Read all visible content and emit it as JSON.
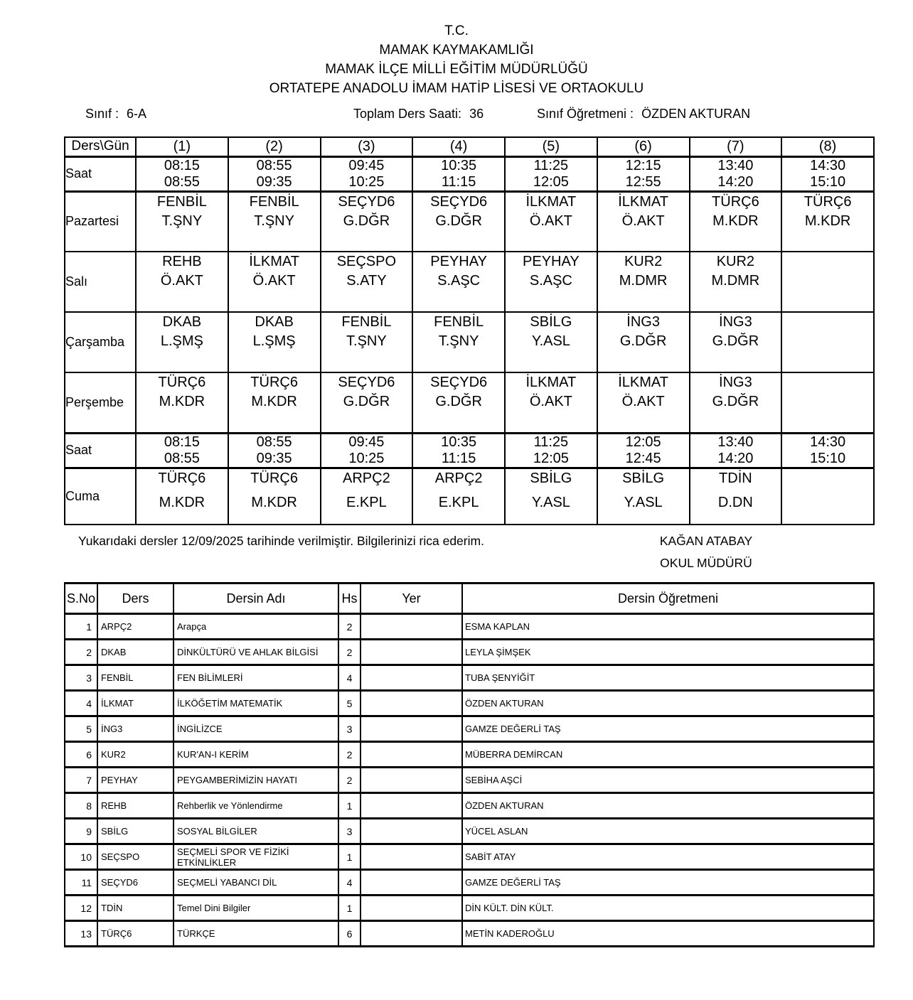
{
  "header": {
    "title_lines": [
      "T.C.",
      "MAMAK KAYMAKAMLIĞI",
      "MAMAK İLÇE MİLLİ EĞİTİM MÜDÜRLÜĞÜ",
      "ORTATEPE ANADOLU İMAM HATİP LİSESİ VE ORTAOKULU"
    ],
    "class_label": "Sınıf :",
    "class_value": "6-A",
    "total_hours_label": "Toplam Ders Saati:",
    "total_hours_value": "36",
    "teacher_label": "Sınıf Öğretmeni :",
    "teacher_value": "ÖZDEN AKTURAN"
  },
  "schedule": {
    "corner_label": "Ders\\Gün",
    "saat_label": "Saat",
    "periods": [
      "(1)",
      "(2)",
      "(3)",
      "(4)",
      "(5)",
      "(6)",
      "(7)",
      "(8)"
    ],
    "times_top": [
      {
        "start": "08:15",
        "end": "08:55"
      },
      {
        "start": "08:55",
        "end": "09:35"
      },
      {
        "start": "09:45",
        "end": "10:25"
      },
      {
        "start": "10:35",
        "end": "11:15"
      },
      {
        "start": "11:25",
        "end": "12:05"
      },
      {
        "start": "12:15",
        "end": "12:55"
      },
      {
        "start": "13:40",
        "end": "14:20"
      },
      {
        "start": "14:30",
        "end": "15:10"
      }
    ],
    "times_friday": [
      {
        "start": "08:15",
        "end": "08:55"
      },
      {
        "start": "08:55",
        "end": "09:35"
      },
      {
        "start": "09:45",
        "end": "10:25"
      },
      {
        "start": "10:35",
        "end": "11:15"
      },
      {
        "start": "11:25",
        "end": "12:05"
      },
      {
        "start": "12:05",
        "end": "12:45"
      },
      {
        "start": "13:40",
        "end": "14:20"
      },
      {
        "start": "14:30",
        "end": "15:10"
      }
    ],
    "days": [
      {
        "name": "Pazartesi",
        "cells": [
          {
            "code": "FENBİL",
            "teacher": "T.ŞNY"
          },
          {
            "code": "FENBİL",
            "teacher": "T.ŞNY"
          },
          {
            "code": "SEÇYD6",
            "teacher": "G.DĞR"
          },
          {
            "code": "SEÇYD6",
            "teacher": "G.DĞR"
          },
          {
            "code": "İLKMAT",
            "teacher": "Ö.AKT"
          },
          {
            "code": "İLKMAT",
            "teacher": "Ö.AKT"
          },
          {
            "code": "TÜRÇ6",
            "teacher": "M.KDR"
          },
          {
            "code": "TÜRÇ6",
            "teacher": "M.KDR"
          }
        ]
      },
      {
        "name": "Salı",
        "cells": [
          {
            "code": "REHB",
            "teacher": "Ö.AKT"
          },
          {
            "code": "İLKMAT",
            "teacher": "Ö.AKT"
          },
          {
            "code": "SEÇSPO",
            "teacher": "S.ATY"
          },
          {
            "code": "PEYHAY",
            "teacher": "S.AŞC"
          },
          {
            "code": "PEYHAY",
            "teacher": "S.AŞC"
          },
          {
            "code": "KUR2",
            "teacher": "M.DMR"
          },
          {
            "code": "KUR2",
            "teacher": "M.DMR"
          },
          null
        ]
      },
      {
        "name": "Çarşamba",
        "cells": [
          {
            "code": "DKAB",
            "teacher": "L.ŞMŞ"
          },
          {
            "code": "DKAB",
            "teacher": "L.ŞMŞ"
          },
          {
            "code": "FENBİL",
            "teacher": "T.ŞNY"
          },
          {
            "code": "FENBİL",
            "teacher": "T.ŞNY"
          },
          {
            "code": "SBİLG",
            "teacher": "Y.ASL"
          },
          {
            "code": "İNG3",
            "teacher": "G.DĞR"
          },
          {
            "code": "İNG3",
            "teacher": "G.DĞR"
          },
          null
        ]
      },
      {
        "name": "Perşembe",
        "cells": [
          {
            "code": "TÜRÇ6",
            "teacher": "M.KDR"
          },
          {
            "code": "TÜRÇ6",
            "teacher": "M.KDR"
          },
          {
            "code": "SEÇYD6",
            "teacher": "G.DĞR"
          },
          {
            "code": "SEÇYD6",
            "teacher": "G.DĞR"
          },
          {
            "code": "İLKMAT",
            "teacher": "Ö.AKT"
          },
          {
            "code": "İLKMAT",
            "teacher": "Ö.AKT"
          },
          {
            "code": "İNG3",
            "teacher": "G.DĞR"
          },
          null
        ]
      }
    ],
    "friday": {
      "name": "Cuma",
      "cells": [
        {
          "code": "TÜRÇ6",
          "teacher": "M.KDR"
        },
        {
          "code": "TÜRÇ6",
          "teacher": "M.KDR"
        },
        {
          "code": "ARPÇ2",
          "teacher": "E.KPL"
        },
        {
          "code": "ARPÇ2",
          "teacher": "E.KPL"
        },
        {
          "code": "SBİLG",
          "teacher": "Y.ASL"
        },
        {
          "code": "SBİLG",
          "teacher": "Y.ASL"
        },
        {
          "code": "TDİN",
          "teacher": "D.DN"
        },
        null
      ]
    }
  },
  "footer": {
    "note": "Yukarıdaki dersler 12/09/2025 tarihinde verilmiştir. Bilgilerinizi rica ederim.",
    "principal_name": "KAĞAN ATABAY",
    "principal_title": "OKUL MÜDÜRÜ"
  },
  "courses": {
    "headers": [
      "S.No",
      "Ders",
      "Dersin Adı",
      "Hs",
      "Yer",
      "Dersin Öğretmeni"
    ],
    "rows": [
      {
        "no": "1",
        "code": "ARPÇ2",
        "name": "Arapça",
        "hours": "2",
        "place": "",
        "teacher": "ESMA KAPLAN"
      },
      {
        "no": "2",
        "code": "DKAB",
        "name": "DİNKÜLTÜRÜ VE AHLAK BİLGİSİ",
        "hours": "2",
        "place": "",
        "teacher": "LEYLA ŞİMŞEK"
      },
      {
        "no": "3",
        "code": "FENBİL",
        "name": "FEN BİLİMLERİ",
        "hours": "4",
        "place": "",
        "teacher": "TUBA ŞENYİĞİT"
      },
      {
        "no": "4",
        "code": "İLKMAT",
        "name": "İLKÖĞETİM MATEMATİK",
        "hours": "5",
        "place": "",
        "teacher": "ÖZDEN AKTURAN"
      },
      {
        "no": "5",
        "code": "İNG3",
        "name": "İNGİLİZCE",
        "hours": "3",
        "place": "",
        "teacher": "GAMZE DEĞERLİ TAŞ"
      },
      {
        "no": "6",
        "code": "KUR2",
        "name": "KUR'AN-I KERİM",
        "hours": "2",
        "place": "",
        "teacher": "MÜBERRA DEMİRCAN"
      },
      {
        "no": "7",
        "code": "PEYHAY",
        "name": "PEYGAMBERİMİZİN HAYATI",
        "hours": "2",
        "place": "",
        "teacher": "SEBİHA AŞCİ"
      },
      {
        "no": "8",
        "code": "REHB",
        "name": "Rehberlik ve Yönlendirme",
        "hours": "1",
        "place": "",
        "teacher": "ÖZDEN AKTURAN"
      },
      {
        "no": "9",
        "code": "SBİLG",
        "name": "SOSYAL BİLGİLER",
        "hours": "3",
        "place": "",
        "teacher": "YÜCEL ASLAN"
      },
      {
        "no": "10",
        "code": "SEÇSPO",
        "name": "SEÇMELİ SPOR VE FİZİKİ ETKİNLİKLER",
        "hours": "1",
        "place": "",
        "teacher": "SABİT ATAY"
      },
      {
        "no": "11",
        "code": "SEÇYD6",
        "name": "SEÇMELİ YABANCI DİL",
        "hours": "4",
        "place": "",
        "teacher": "GAMZE DEĞERLİ TAŞ"
      },
      {
        "no": "12",
        "code": "TDİN",
        "name": "Temel Dini Bilgiler",
        "hours": "1",
        "place": "",
        "teacher": "DİN KÜLT. DİN KÜLT."
      },
      {
        "no": "13",
        "code": "TÜRÇ6",
        "name": "TÜRKÇE",
        "hours": "6",
        "place": "",
        "teacher": "METİN KADEROĞLU"
      }
    ]
  }
}
